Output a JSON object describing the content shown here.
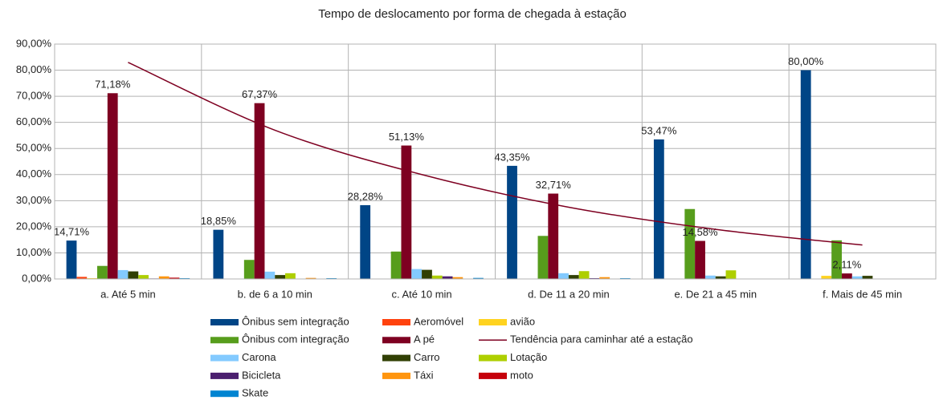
{
  "chart_data": {
    "type": "bar",
    "title": "Tempo de deslocamento por forma de chegada à estação",
    "categories": [
      "a. Até 5 min",
      "b. de 6 a 10 min",
      "c. Até 10 min",
      "d. De 11 a 20 min",
      "e. De 21 a 45 min",
      "f. Mais de 45 min"
    ],
    "ylim": [
      0,
      90
    ],
    "yticks": [
      {
        "value": 0,
        "label": "0,00%"
      },
      {
        "value": 10,
        "label": "10,00%"
      },
      {
        "value": 20,
        "label": "20,00%"
      },
      {
        "value": 30,
        "label": "30,00%"
      },
      {
        "value": 40,
        "label": "40,00%"
      },
      {
        "value": 50,
        "label": "50,00%"
      },
      {
        "value": 60,
        "label": "60,00%"
      },
      {
        "value": 70,
        "label": "70,00%"
      },
      {
        "value": 80,
        "label": "80,00%"
      },
      {
        "value": 90,
        "label": "90,00%"
      }
    ],
    "grid": true,
    "series": [
      {
        "name": "Ônibus sem integração",
        "color": "#004586",
        "values": [
          14.71,
          18.85,
          28.28,
          43.35,
          53.47,
          80.0
        ],
        "value_labels": [
          "14,71%",
          "18,85%",
          "28,28%",
          "43,35%",
          "53,47%",
          "80,00%"
        ]
      },
      {
        "name": "Aeromóvel",
        "color": "#ff420e",
        "values": [
          0.8,
          0,
          0,
          0,
          0,
          0
        ]
      },
      {
        "name": "avião",
        "color": "#ffd320",
        "values": [
          0.3,
          0,
          0,
          0,
          0,
          1.2
        ]
      },
      {
        "name": "Ônibus com integração",
        "color": "#579d1c",
        "values": [
          5.0,
          7.3,
          10.5,
          16.5,
          26.8,
          14.8
        ]
      },
      {
        "name": "A pé",
        "color": "#7e0021",
        "values": [
          71.18,
          67.37,
          51.13,
          32.71,
          14.58,
          2.11
        ],
        "value_labels": [
          "71,18%",
          "67,37%",
          "51,13%",
          "32,71%",
          "14,58%",
          "2,11%"
        ]
      },
      {
        "name": "Carona",
        "color": "#83caff",
        "values": [
          3.4,
          2.8,
          3.8,
          2.2,
          1.3,
          1.0
        ]
      },
      {
        "name": "Carro",
        "color": "#314004",
        "values": [
          2.9,
          1.5,
          3.5,
          1.5,
          1.0,
          1.2
        ]
      },
      {
        "name": "Lotação",
        "color": "#aecf00",
        "values": [
          1.5,
          2.2,
          1.3,
          3.0,
          3.3,
          0
        ]
      },
      {
        "name": "Bicicleta",
        "color": "#4b1f6f",
        "values": [
          0.2,
          0,
          1.0,
          0.3,
          0,
          0
        ]
      },
      {
        "name": "Táxi",
        "color": "#ff950e",
        "values": [
          1.0,
          0.4,
          0.7,
          0.7,
          0,
          0
        ]
      },
      {
        "name": "moto",
        "color": "#c5000b",
        "values": [
          0.5,
          0,
          0,
          0,
          0,
          0
        ]
      },
      {
        "name": "Skate",
        "color": "#0084d1",
        "values": [
          0.3,
          0.3,
          0.4,
          0.3,
          0,
          0
        ]
      }
    ],
    "trendline": {
      "name": "Tendência para caminhar até a estação",
      "color": "#7e0021",
      "values": [
        83,
        57,
        40,
        27.5,
        19,
        13
      ]
    }
  }
}
